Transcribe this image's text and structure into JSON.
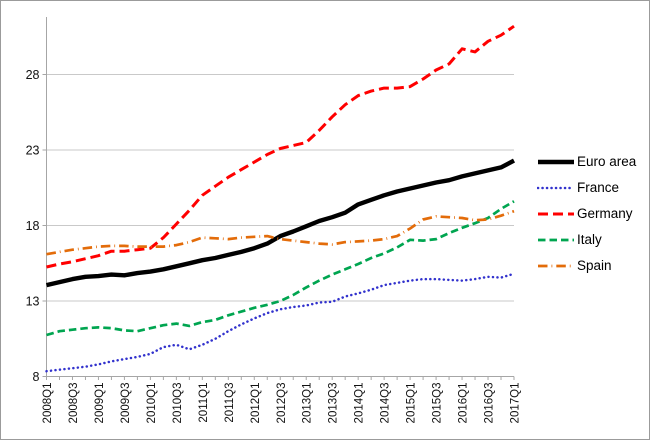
{
  "figure": {
    "background": "#ffffff",
    "border_color": "#9b9b9b",
    "gridline_color": "#c9c9c9",
    "axis_color": "#a6a6a6",
    "tick_label_color": "#111111"
  },
  "chart_data": {
    "type": "line",
    "title": "",
    "xlabel": "",
    "ylabel": "",
    "grid": "horizontal",
    "legend_position": "right",
    "y_axis": {
      "ticks": [
        8,
        13,
        18,
        23,
        28
      ],
      "min": 8,
      "max": 31.8
    },
    "x_axis_labels": [
      "2008Q1",
      "2008Q3",
      "2009Q1",
      "2009Q3",
      "2010Q1",
      "2010Q3",
      "2011Q1",
      "2011Q3",
      "2012Q1",
      "2012Q3",
      "2013Q1",
      "2013Q3",
      "2014Q1",
      "2014Q3",
      "2015Q1",
      "2015Q3",
      "2016Q1",
      "2016Q3",
      "2017Q1"
    ],
    "categories": [
      "2008Q1",
      "2008Q2",
      "2008Q3",
      "2008Q4",
      "2009Q1",
      "2009Q2",
      "2009Q3",
      "2009Q4",
      "2010Q1",
      "2010Q2",
      "2010Q3",
      "2010Q4",
      "2011Q1",
      "2011Q2",
      "2011Q3",
      "2011Q4",
      "2012Q1",
      "2012Q2",
      "2012Q3",
      "2012Q4",
      "2013Q1",
      "2013Q2",
      "2013Q3",
      "2013Q4",
      "2014Q1",
      "2014Q2",
      "2014Q3",
      "2014Q4",
      "2015Q1",
      "2015Q2",
      "2015Q3",
      "2015Q4",
      "2016Q1",
      "2016Q2",
      "2016Q3",
      "2016Q4",
      "2017Q1"
    ],
    "series": [
      {
        "name": "Euro area",
        "color": "#000000",
        "style": "solid",
        "values": [
          14.05,
          14.25,
          14.45,
          14.6,
          14.65,
          14.75,
          14.7,
          14.85,
          14.95,
          15.1,
          15.3,
          15.5,
          15.7,
          15.85,
          16.05,
          16.25,
          16.5,
          16.8,
          17.3,
          17.6,
          17.95,
          18.3,
          18.55,
          18.85,
          19.4,
          19.7,
          20.0,
          20.25,
          20.45,
          20.65,
          20.85,
          21.0,
          21.25,
          21.45,
          21.65,
          21.85,
          22.3
        ]
      },
      {
        "name": "France",
        "color": "#3232cd",
        "style": "dotted",
        "values": [
          8.35,
          8.45,
          8.55,
          8.65,
          8.8,
          9.0,
          9.15,
          9.3,
          9.5,
          9.95,
          10.1,
          9.8,
          10.1,
          10.5,
          11.0,
          11.45,
          11.85,
          12.2,
          12.45,
          12.6,
          12.7,
          12.9,
          12.95,
          13.3,
          13.5,
          13.75,
          14.05,
          14.2,
          14.35,
          14.45,
          14.45,
          14.4,
          14.35,
          14.45,
          14.6,
          14.55,
          14.8
        ]
      },
      {
        "name": "Germany",
        "color": "#ff0000",
        "style": "dashed",
        "values": [
          15.25,
          15.45,
          15.6,
          15.8,
          16.0,
          16.3,
          16.3,
          16.4,
          16.5,
          17.2,
          18.1,
          19.0,
          20.0,
          20.6,
          21.2,
          21.7,
          22.2,
          22.7,
          23.1,
          23.3,
          23.5,
          24.3,
          25.2,
          26.0,
          26.6,
          26.9,
          27.1,
          27.1,
          27.2,
          27.7,
          28.3,
          28.7,
          29.7,
          29.5,
          30.2,
          30.6,
          31.2
        ]
      },
      {
        "name": "Italy",
        "color": "#00a550",
        "style": "dashed-short",
        "values": [
          10.75,
          11.0,
          11.1,
          11.2,
          11.25,
          11.2,
          11.05,
          11.0,
          11.2,
          11.4,
          11.5,
          11.35,
          11.6,
          11.75,
          12.05,
          12.3,
          12.55,
          12.75,
          13.0,
          13.4,
          13.9,
          14.35,
          14.75,
          15.1,
          15.45,
          15.85,
          16.15,
          16.55,
          17.05,
          17.0,
          17.1,
          17.5,
          17.85,
          18.15,
          18.5,
          19.1,
          19.6
        ]
      },
      {
        "name": "Spain",
        "color": "#e36c0a",
        "style": "dashdot",
        "values": [
          16.1,
          16.25,
          16.4,
          16.5,
          16.6,
          16.65,
          16.65,
          16.6,
          16.6,
          16.6,
          16.7,
          16.9,
          17.2,
          17.15,
          17.1,
          17.2,
          17.25,
          17.3,
          17.1,
          17.0,
          16.9,
          16.8,
          16.75,
          16.9,
          16.95,
          17.0,
          17.1,
          17.3,
          17.8,
          18.4,
          18.6,
          18.55,
          18.5,
          18.35,
          18.4,
          18.65,
          18.95
        ]
      }
    ]
  }
}
